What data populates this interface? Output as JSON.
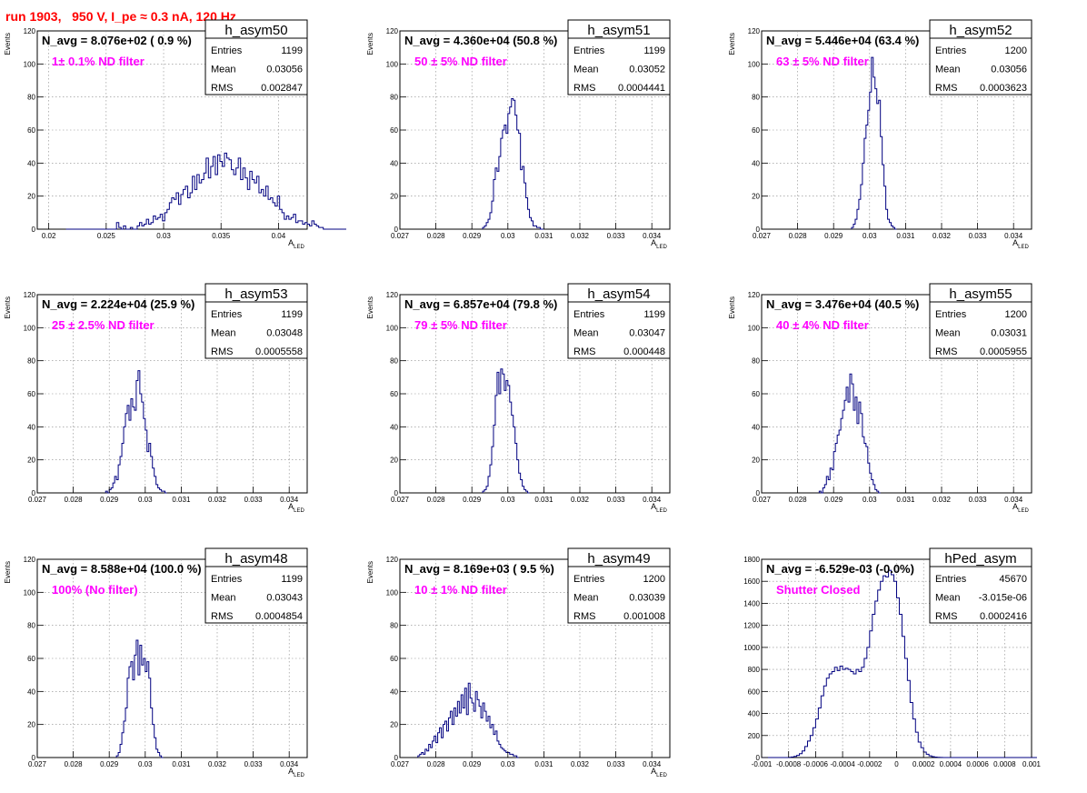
{
  "page_title": "run 1903,   950 V, I_pe ≈ 0.3 nA, 120 Hz",
  "colors": {
    "title": "#ff0000",
    "annotation": "#ff00ff",
    "histogram": "#000080",
    "grid": "#888888"
  },
  "chart_data": [
    {
      "type": "histogram",
      "name": "h_asym50",
      "stats": {
        "entries_label": "Entries",
        "entries": "1199",
        "mean_label": "Mean",
        "mean": "0.03056",
        "rms_label": "RMS",
        "rms": "0.002847"
      },
      "navg_text": "N_avg = 8.076e+02 ( 0.9 %)",
      "annotation": "1± 0.1% ND filter",
      "xlabel": "A_LED",
      "ylabel": "Events",
      "xlim": [
        0.019,
        0.0425
      ],
      "ylim": [
        0,
        120
      ],
      "xticks": [
        0.02,
        0.025,
        0.03,
        0.035,
        0.04
      ],
      "xtick_labels": [
        "0.02",
        "0.025",
        "0.03",
        "0.035",
        "0.04"
      ],
      "yticks": [
        0,
        20,
        40,
        60,
        80,
        100,
        120
      ],
      "ytick_labels": [
        "0",
        "20",
        "40",
        "60",
        "80",
        "100",
        "120"
      ],
      "bin_start": 0.0215,
      "bin_width": 0.0002,
      "counts": [
        0,
        0,
        0,
        0,
        0,
        0,
        0,
        0,
        0,
        0,
        0,
        0,
        0,
        0,
        0,
        0,
        0,
        0,
        0,
        0,
        0,
        0,
        4,
        1,
        0,
        2,
        0,
        0,
        1,
        0,
        0,
        2,
        4,
        2,
        3,
        6,
        3,
        4,
        8,
        6,
        7,
        9,
        5,
        10,
        12,
        16,
        19,
        18,
        22,
        15,
        21,
        24,
        26,
        19,
        22,
        32,
        24,
        33,
        28,
        30,
        34,
        43,
        31,
        38,
        44,
        33,
        45,
        41,
        38,
        46,
        43,
        42,
        36,
        33,
        37,
        43,
        30,
        37,
        31,
        24,
        35,
        30,
        28,
        32,
        22,
        24,
        20,
        26,
        18,
        19,
        16,
        14,
        20,
        12,
        10,
        6,
        8,
        6,
        7,
        9,
        4,
        5,
        5,
        3,
        4,
        3,
        2,
        5,
        3,
        2,
        1,
        1,
        0,
        0,
        0,
        0,
        0,
        0,
        0,
        0,
        0,
        0
      ]
    },
    {
      "type": "histogram",
      "name": "h_asym51",
      "stats": {
        "entries_label": "Entries",
        "entries": "1199",
        "mean_label": "Mean",
        "mean": "0.03052",
        "rms_label": "RMS",
        "rms": "0.0004441"
      },
      "navg_text": "N_avg = 4.360e+04 (50.8 %)",
      "annotation": "50 ± 5% ND filter",
      "xlabel": "A_LED",
      "ylabel": "Events",
      "xlim": [
        0.027,
        0.0345
      ],
      "ylim": [
        0,
        120
      ],
      "xticks": [
        0.027,
        0.028,
        0.029,
        0.03,
        0.031,
        0.032,
        0.033,
        0.034
      ],
      "xtick_labels": [
        "0.027",
        "0.028",
        "0.029",
        "0.03",
        "0.031",
        "0.032",
        "0.033",
        "0.034"
      ],
      "yticks": [
        0,
        20,
        40,
        60,
        80,
        100,
        120
      ],
      "ytick_labels": [
        "0",
        "20",
        "40",
        "60",
        "80",
        "100",
        "120"
      ],
      "bin_start": 0.0293,
      "bin_width": 5e-05,
      "counts": [
        1,
        2,
        4,
        6,
        10,
        17,
        30,
        37,
        35,
        44,
        55,
        60,
        63,
        58,
        70,
        74,
        79,
        78,
        69,
        60,
        58,
        36,
        38,
        28,
        19,
        12,
        7,
        5,
        2,
        2,
        1,
        1,
        0,
        0
      ]
    },
    {
      "type": "histogram",
      "name": "h_asym52",
      "stats": {
        "entries_label": "Entries",
        "entries": "1200",
        "mean_label": "Mean",
        "mean": "0.03056",
        "rms_label": "RMS",
        "rms": "0.0003623"
      },
      "navg_text": "N_avg = 5.446e+04 (63.4 %)",
      "annotation": "63 ± 5% ND filter",
      "xlabel": "A_LED",
      "ylabel": "Events",
      "xlim": [
        0.027,
        0.0345
      ],
      "ylim": [
        0,
        120
      ],
      "xticks": [
        0.027,
        0.028,
        0.029,
        0.03,
        0.031,
        0.032,
        0.033,
        0.034
      ],
      "xtick_labels": [
        "0.027",
        "0.028",
        "0.029",
        "0.03",
        "0.031",
        "0.032",
        "0.033",
        "0.034"
      ],
      "yticks": [
        0,
        20,
        40,
        60,
        80,
        100,
        120
      ],
      "ytick_labels": [
        "0",
        "20",
        "40",
        "60",
        "80",
        "100",
        "120"
      ],
      "bin_start": 0.0295,
      "bin_width": 5e-05,
      "counts": [
        1,
        3,
        6,
        12,
        18,
        27,
        40,
        55,
        63,
        72,
        83,
        104,
        92,
        85,
        76,
        78,
        56,
        39,
        26,
        12,
        6,
        4,
        2,
        1,
        0
      ]
    },
    {
      "type": "histogram",
      "name": "h_asym53",
      "stats": {
        "entries_label": "Entries",
        "entries": "1199",
        "mean_label": "Mean",
        "mean": "0.03048",
        "rms_label": "RMS",
        "rms": "0.0005558"
      },
      "navg_text": "N_avg = 2.224e+04 (25.9 %)",
      "annotation": "25 ± 2.5% ND filter",
      "xlabel": "A_LED",
      "ylabel": "Events",
      "xlim": [
        0.027,
        0.0345
      ],
      "ylim": [
        0,
        120
      ],
      "xticks": [
        0.027,
        0.028,
        0.029,
        0.03,
        0.031,
        0.032,
        0.033,
        0.034
      ],
      "xtick_labels": [
        "0.027",
        "0.028",
        "0.029",
        "0.03",
        "0.031",
        "0.032",
        "0.033",
        "0.034"
      ],
      "yticks": [
        0,
        20,
        40,
        60,
        80,
        100,
        120
      ],
      "ytick_labels": [
        "0",
        "20",
        "40",
        "60",
        "80",
        "100",
        "120"
      ],
      "bin_start": 0.0289,
      "bin_width": 5e-05,
      "counts": [
        1,
        0,
        2,
        3,
        6,
        10,
        8,
        17,
        22,
        30,
        40,
        48,
        53,
        44,
        57,
        52,
        50,
        68,
        74,
        60,
        55,
        45,
        38,
        25,
        30,
        22,
        15,
        10,
        5,
        3,
        2,
        1,
        1,
        0
      ]
    },
    {
      "type": "histogram",
      "name": "h_asym54",
      "stats": {
        "entries_label": "Entries",
        "entries": "1199",
        "mean_label": "Mean",
        "mean": "0.03047",
        "rms_label": "RMS",
        "rms": "0.000448"
      },
      "navg_text": "N_avg = 6.857e+04 (79.8 %)",
      "annotation": "79 ± 5% ND filter",
      "xlabel": "A_LED",
      "ylabel": "Events",
      "xlim": [
        0.027,
        0.0345
      ],
      "ylim": [
        0,
        120
      ],
      "xticks": [
        0.027,
        0.028,
        0.029,
        0.03,
        0.031,
        0.032,
        0.033,
        0.034
      ],
      "xtick_labels": [
        "0.027",
        "0.028",
        "0.029",
        "0.03",
        "0.031",
        "0.032",
        "0.033",
        "0.034"
      ],
      "yticks": [
        0,
        20,
        40,
        60,
        80,
        100,
        120
      ],
      "ytick_labels": [
        "0",
        "20",
        "40",
        "60",
        "80",
        "100",
        "120"
      ],
      "bin_start": 0.0293,
      "bin_width": 5e-05,
      "counts": [
        1,
        2,
        4,
        10,
        17,
        28,
        41,
        59,
        73,
        60,
        75,
        72,
        62,
        68,
        65,
        55,
        47,
        40,
        30,
        20,
        12,
        8,
        4,
        2,
        1,
        0
      ]
    },
    {
      "type": "histogram",
      "name": "h_asym55",
      "stats": {
        "entries_label": "Entries",
        "entries": "1200",
        "mean_label": "Mean",
        "mean": "0.03031",
        "rms_label": "RMS",
        "rms": "0.0005955"
      },
      "navg_text": "N_avg = 3.476e+04 (40.5 %)",
      "annotation": "40 ± 4% ND filter",
      "xlabel": "A_LED",
      "ylabel": "Events",
      "xlim": [
        0.027,
        0.0345
      ],
      "ylim": [
        0,
        120
      ],
      "xticks": [
        0.027,
        0.028,
        0.029,
        0.03,
        0.031,
        0.032,
        0.033,
        0.034
      ],
      "xtick_labels": [
        "0.027",
        "0.028",
        "0.029",
        "0.03",
        "0.031",
        "0.032",
        "0.033",
        "0.034"
      ],
      "yticks": [
        0,
        20,
        40,
        60,
        80,
        100,
        120
      ],
      "ytick_labels": [
        "0",
        "20",
        "40",
        "60",
        "80",
        "100",
        "120"
      ],
      "bin_start": 0.0286,
      "bin_width": 5e-05,
      "counts": [
        1,
        0,
        3,
        5,
        10,
        8,
        15,
        14,
        25,
        30,
        35,
        38,
        45,
        50,
        56,
        64,
        55,
        72,
        66,
        50,
        58,
        42,
        55,
        48,
        34,
        30,
        28,
        18,
        12,
        8,
        5,
        2,
        1,
        0
      ]
    },
    {
      "type": "histogram",
      "name": "h_asym48",
      "stats": {
        "entries_label": "Entries",
        "entries": "1199",
        "mean_label": "Mean",
        "mean": "0.03043",
        "rms_label": "RMS",
        "rms": "0.0004854"
      },
      "navg_text": "N_avg = 8.588e+04 (100.0 %)",
      "annotation": "100% (No filter)",
      "xlabel": "A_LED",
      "ylabel": "Events",
      "xlim": [
        0.027,
        0.0345
      ],
      "ylim": [
        0,
        120
      ],
      "xticks": [
        0.027,
        0.028,
        0.029,
        0.03,
        0.031,
        0.032,
        0.033,
        0.034
      ],
      "xtick_labels": [
        "0.027",
        "0.028",
        "0.029",
        "0.03",
        "0.031",
        "0.032",
        "0.033",
        "0.034"
      ],
      "yticks": [
        0,
        20,
        40,
        60,
        80,
        100,
        120
      ],
      "ytick_labels": [
        "0",
        "20",
        "40",
        "60",
        "80",
        "100",
        "120"
      ],
      "bin_start": 0.0292,
      "bin_width": 5e-05,
      "counts": [
        1,
        3,
        8,
        15,
        22,
        30,
        48,
        55,
        58,
        47,
        62,
        71,
        50,
        68,
        56,
        60,
        52,
        58,
        48,
        30,
        20,
        12,
        5,
        3,
        1,
        0
      ]
    },
    {
      "type": "histogram",
      "name": "h_asym49",
      "stats": {
        "entries_label": "Entries",
        "entries": "1200",
        "mean_label": "Mean",
        "mean": "0.03039",
        "rms_label": "RMS",
        "rms": "0.001008"
      },
      "navg_text": "N_avg = 8.169e+03 ( 9.5 %)",
      "annotation": "10 ± 1% ND filter",
      "xlabel": "A_LED",
      "ylabel": "Events",
      "xlim": [
        0.027,
        0.0345
      ],
      "ylim": [
        0,
        120
      ],
      "xticks": [
        0.027,
        0.028,
        0.029,
        0.03,
        0.031,
        0.032,
        0.033,
        0.034
      ],
      "xtick_labels": [
        "0.027",
        "0.028",
        "0.029",
        "0.03",
        "0.031",
        "0.032",
        "0.033",
        "0.034"
      ],
      "yticks": [
        0,
        20,
        40,
        60,
        80,
        100,
        120
      ],
      "ytick_labels": [
        "0",
        "20",
        "40",
        "60",
        "80",
        "100",
        "120"
      ],
      "bin_start": 0.0275,
      "bin_width": 5e-05,
      "counts": [
        1,
        2,
        3,
        2,
        5,
        4,
        8,
        6,
        10,
        13,
        9,
        15,
        18,
        12,
        20,
        22,
        16,
        24,
        28,
        20,
        30,
        25,
        34,
        27,
        38,
        30,
        42,
        26,
        45,
        36,
        33,
        28,
        40,
        35,
        31,
        24,
        33,
        28,
        22,
        25,
        18,
        20,
        14,
        16,
        10,
        8,
        6,
        5,
        4,
        3,
        3,
        2,
        2,
        1,
        1,
        0
      ]
    },
    {
      "type": "histogram",
      "name": "hPed_asym",
      "stats": {
        "entries_label": "Entries",
        "entries": "45670",
        "mean_label": "Mean",
        "mean": "-3.015e-06",
        "rms_label": "RMS",
        "rms": "0.0002416"
      },
      "navg_text": "N_avg = -6.529e-03 (-0.0%)",
      "annotation": "Shutter Closed",
      "xlabel": "",
      "ylabel": "",
      "xlim": [
        -0.001,
        0.001
      ],
      "ylim": [
        0,
        1800
      ],
      "xticks": [
        -0.001,
        -0.0008,
        -0.0006,
        -0.0004,
        -0.0002,
        0,
        0.0002,
        0.0004,
        0.0006,
        0.0008,
        0.001
      ],
      "xtick_labels": [
        "-0.001",
        "-0.0008",
        "-0.0006",
        "-0.0004",
        "-0.0002",
        "0",
        "0.0002",
        "0.0004",
        "0.0006",
        "0.0008",
        "0.001"
      ],
      "yticks": [
        0,
        200,
        400,
        600,
        800,
        1000,
        1200,
        1400,
        1600,
        1800
      ],
      "ytick_labels": [
        "0",
        "200",
        "400",
        "600",
        "800",
        "1000",
        "1200",
        "1400",
        "1600",
        "1800"
      ],
      "bin_start": -0.001,
      "bin_width": 2e-05,
      "counts": [
        0,
        0,
        0,
        0,
        0,
        0,
        0,
        0,
        0,
        0,
        2,
        5,
        10,
        20,
        35,
        60,
        100,
        150,
        200,
        270,
        350,
        450,
        560,
        650,
        720,
        760,
        780,
        820,
        790,
        830,
        800,
        810,
        800,
        780,
        760,
        800,
        780,
        820,
        900,
        1000,
        1150,
        1300,
        1420,
        1520,
        1600,
        1650,
        1640,
        1700,
        1660,
        1600,
        1450,
        1300,
        1100,
        900,
        700,
        500,
        350,
        230,
        140,
        90,
        50,
        30,
        15,
        8,
        4,
        2,
        1,
        0,
        0,
        0,
        0,
        0,
        0,
        0,
        0,
        0,
        0,
        0,
        0,
        0,
        0,
        0,
        0,
        0,
        0,
        0,
        0,
        0,
        0,
        0,
        0,
        0,
        0,
        0,
        0,
        0,
        0,
        0,
        0,
        0,
        0,
        0
      ]
    }
  ]
}
